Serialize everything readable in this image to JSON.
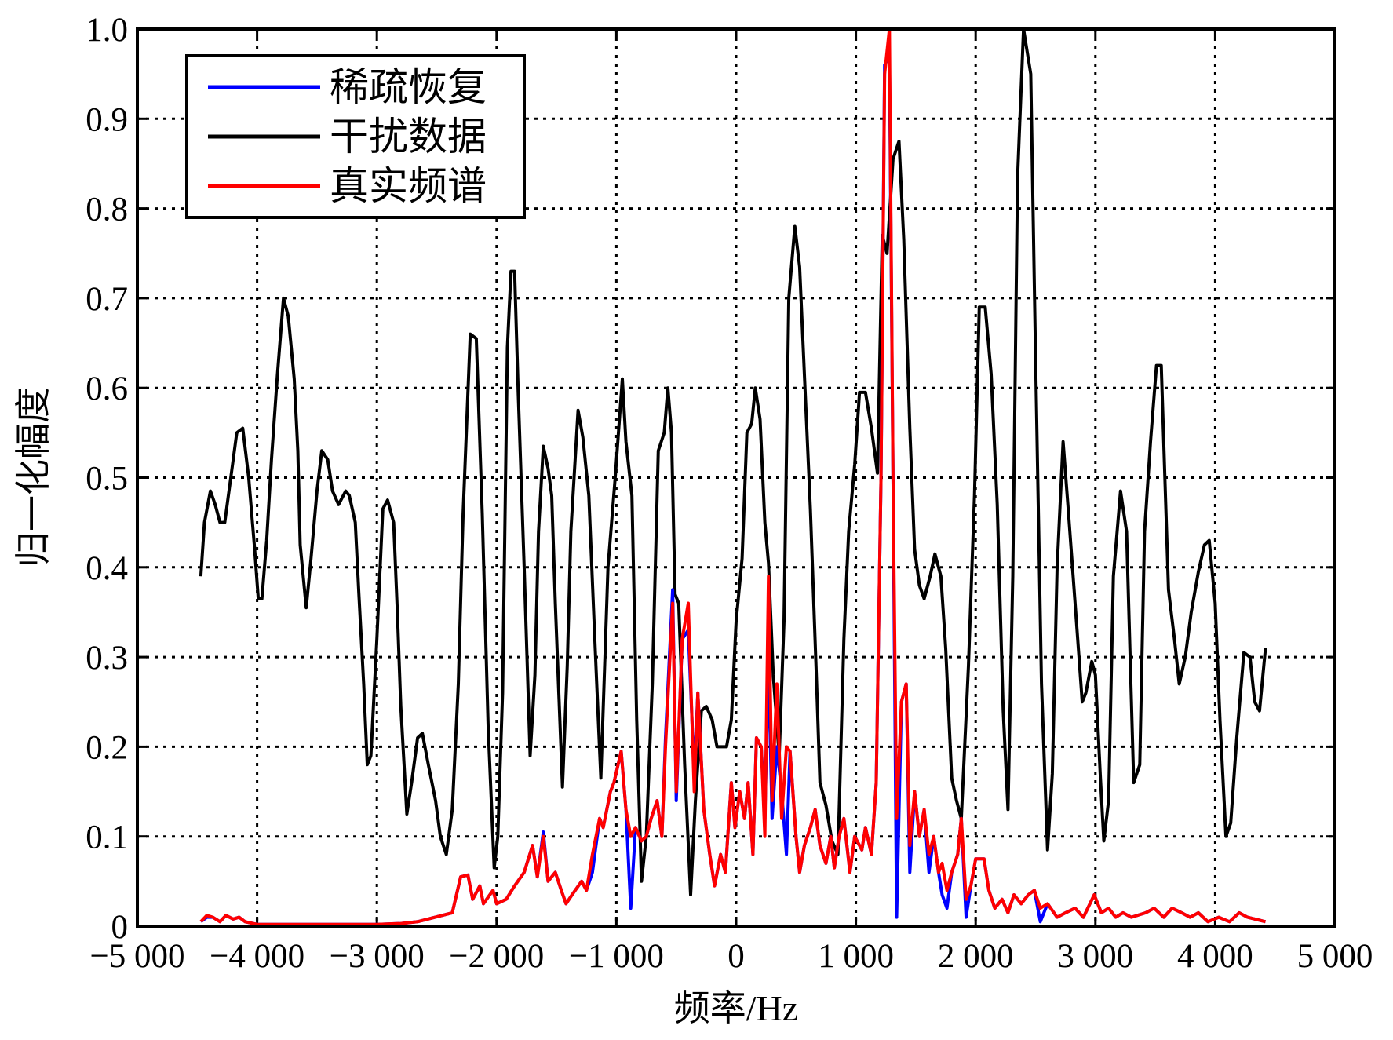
{
  "chart_data": {
    "type": "line",
    "xlabel": "频率/Hz",
    "ylabel": "归一化幅度",
    "xlim": [
      -5000,
      5000
    ],
    "xticks": [
      {
        "value": -5000,
        "label": "−5 000"
      },
      {
        "value": -4000,
        "label": "−4 000"
      },
      {
        "value": -3000,
        "label": "−3 000"
      },
      {
        "value": -2000,
        "label": "−2 000"
      },
      {
        "value": -1000,
        "label": "−1 000"
      },
      0,
      {
        "value": 1000,
        "label": "1 000"
      },
      {
        "value": 2000,
        "label": "2 000"
      },
      {
        "value": 3000,
        "label": "3 000"
      },
      {
        "value": 4000,
        "label": "4 000"
      },
      {
        "value": 5000,
        "label": "5 000"
      }
    ],
    "ylim": [
      0,
      1
    ],
    "yticks": [
      0,
      0.1,
      0.2,
      0.3,
      0.4,
      0.5,
      0.6,
      0.7,
      0.8,
      0.9,
      {
        "value": 1,
        "label": "1.0"
      }
    ],
    "grid": true,
    "legend": "upper left",
    "series": [
      {
        "name": "稀疏恢复",
        "color": "#0000ff",
        "x": [
          -4470,
          -4420,
          -4370,
          -4310,
          -4260,
          -4200,
          -4150,
          -4100,
          -4000,
          -3000,
          -2800,
          -2660,
          -2370,
          -2300,
          -2240,
          -2200,
          -2140,
          -2110,
          -2030,
          -2000,
          -1920,
          -1850,
          -1770,
          -1700,
          -1660,
          -1610,
          -1570,
          -1510,
          -1460,
          -1420,
          -1370,
          -1290,
          -1250,
          -1200,
          -1140,
          -1110,
          -1050,
          -1020,
          -960,
          -920,
          -880,
          -840,
          -790,
          -750,
          -710,
          -660,
          -620,
          -590,
          -530,
          -500,
          -450,
          -400,
          -350,
          -320,
          -270,
          -220,
          -180,
          -130,
          -90,
          -40,
          -10,
          30,
          70,
          100,
          140,
          170,
          210,
          240,
          270,
          300,
          340,
          380,
          420,
          450,
          500,
          530,
          570,
          620,
          660,
          700,
          750,
          790,
          820,
          860,
          900,
          950,
          990,
          1050,
          1080,
          1130,
          1170,
          1210,
          1240,
          1280,
          1310,
          1340,
          1380,
          1420,
          1450,
          1490,
          1530,
          1570,
          1610,
          1650,
          1690,
          1720,
          1760,
          1800,
          1850,
          1880,
          1920,
          1960,
          2000,
          2070,
          2110,
          2160,
          2220,
          2270,
          2320,
          2380,
          2440,
          2490,
          2540,
          2600,
          2680,
          2750,
          2830,
          2900,
          2990,
          3050,
          3110,
          3170,
          3230,
          3300,
          3420,
          3490,
          3570,
          3640,
          3720,
          3790,
          3860,
          3940,
          4030,
          4120,
          4200,
          4270,
          4420
        ],
        "values": [
          0.005,
          0.01,
          0.01,
          0.005,
          0.012,
          0.008,
          0.01,
          0.005,
          0.002,
          0.002,
          0.003,
          0.005,
          0.015,
          0.055,
          0.057,
          0.03,
          0.045,
          0.025,
          0.04,
          0.025,
          0.03,
          0.045,
          0.06,
          0.09,
          0.055,
          0.105,
          0.05,
          0.06,
          0.04,
          0.025,
          0.035,
          0.05,
          0.04,
          0.06,
          0.12,
          0.11,
          0.15,
          0.16,
          0.195,
          0.13,
          0.02,
          0.11,
          0.095,
          0.1,
          0.12,
          0.14,
          0.1,
          0.21,
          0.375,
          0.14,
          0.32,
          0.33,
          0.17,
          0.26,
          0.13,
          0.08,
          0.045,
          0.08,
          0.06,
          0.16,
          0.11,
          0.15,
          0.12,
          0.16,
          0.08,
          0.21,
          0.2,
          0.12,
          0.3,
          0.12,
          0.2,
          0.15,
          0.08,
          0.195,
          0.1,
          0.06,
          0.09,
          0.11,
          0.13,
          0.09,
          0.07,
          0.1,
          0.065,
          0.1,
          0.12,
          0.06,
          0.1,
          0.085,
          0.11,
          0.08,
          0.16,
          0.5,
          0.96,
          0.97,
          0.5,
          0.01,
          0.25,
          0.27,
          0.06,
          0.15,
          0.1,
          0.13,
          0.06,
          0.1,
          0.06,
          0.035,
          0.02,
          0.06,
          0.08,
          0.12,
          0.01,
          0.045,
          0.075,
          0.075,
          0.04,
          0.02,
          0.03,
          0.015,
          0.035,
          0.025,
          0.035,
          0.04,
          0.005,
          0.025,
          0.01,
          0.015,
          0.02,
          0.01,
          0.035,
          0.015,
          0.02,
          0.01,
          0.015,
          0.01,
          0.015,
          0.02,
          0.01,
          0.02,
          0.015,
          0.01,
          0.015,
          0.005,
          0.01,
          0.005,
          0.015,
          0.01,
          0.005
        ]
      },
      {
        "name": "干扰数据",
        "color": "#000000",
        "x": [
          -4470,
          -4440,
          -4390,
          -4350,
          -4310,
          -4270,
          -4210,
          -4170,
          -4120,
          -4070,
          -4020,
          -3990,
          -3960,
          -3920,
          -3880,
          -3830,
          -3780,
          -3740,
          -3690,
          -3660,
          -3640,
          -3590,
          -3550,
          -3500,
          -3460,
          -3410,
          -3370,
          -3320,
          -3260,
          -3230,
          -3180,
          -3150,
          -3110,
          -3080,
          -3050,
          -3000,
          -2950,
          -2910,
          -2860,
          -2830,
          -2800,
          -2750,
          -2710,
          -2660,
          -2620,
          -2570,
          -2510,
          -2470,
          -2420,
          -2370,
          -2320,
          -2280,
          -2220,
          -2170,
          -2120,
          -2070,
          -2020,
          -1990,
          -1950,
          -1910,
          -1880,
          -1850,
          -1820,
          -1770,
          -1720,
          -1680,
          -1650,
          -1610,
          -1570,
          -1540,
          -1510,
          -1450,
          -1410,
          -1380,
          -1320,
          -1280,
          -1230,
          -1180,
          -1130,
          -1070,
          -1010,
          -950,
          -920,
          -870,
          -830,
          -790,
          -750,
          -700,
          -650,
          -600,
          -570,
          -540,
          -510,
          -480,
          -430,
          -380,
          -340,
          -290,
          -250,
          -200,
          -160,
          -120,
          -80,
          -40,
          0,
          50,
          90,
          130,
          160,
          200,
          240,
          270,
          310,
          360,
          400,
          440,
          490,
          530,
          580,
          620,
          670,
          700,
          750,
          800,
          850,
          900,
          940,
          990,
          1030,
          1080,
          1130,
          1180,
          1220,
          1260,
          1310,
          1360,
          1400,
          1450,
          1490,
          1530,
          1570,
          1620,
          1660,
          1710,
          1750,
          1800,
          1840,
          1880,
          1940,
          1990,
          2030,
          2080,
          2130,
          2180,
          2230,
          2270,
          2310,
          2350,
          2400,
          2460,
          2500,
          2550,
          2600,
          2640,
          2680,
          2730,
          2770,
          2830,
          2890,
          2920,
          2970,
          3000,
          3040,
          3070,
          3110,
          3150,
          3210,
          3260,
          3320,
          3370,
          3410,
          3460,
          3510,
          3550,
          3610,
          3660,
          3700,
          3750,
          3800,
          3860,
          3910,
          3950,
          4000,
          4040,
          4090,
          4130,
          4180,
          4240,
          4290,
          4330,
          4370,
          4420
        ],
        "values": [
          0.39,
          0.45,
          0.485,
          0.47,
          0.45,
          0.45,
          0.51,
          0.55,
          0.555,
          0.5,
          0.42,
          0.365,
          0.365,
          0.43,
          0.52,
          0.615,
          0.7,
          0.68,
          0.61,
          0.53,
          0.425,
          0.355,
          0.41,
          0.485,
          0.53,
          0.52,
          0.485,
          0.47,
          0.485,
          0.48,
          0.45,
          0.37,
          0.27,
          0.18,
          0.19,
          0.32,
          0.465,
          0.475,
          0.45,
          0.355,
          0.245,
          0.125,
          0.16,
          0.21,
          0.215,
          0.18,
          0.14,
          0.1,
          0.08,
          0.13,
          0.27,
          0.46,
          0.66,
          0.655,
          0.46,
          0.22,
          0.065,
          0.1,
          0.26,
          0.645,
          0.73,
          0.73,
          0.595,
          0.4,
          0.19,
          0.28,
          0.44,
          0.535,
          0.51,
          0.48,
          0.36,
          0.155,
          0.29,
          0.44,
          0.575,
          0.545,
          0.48,
          0.32,
          0.165,
          0.4,
          0.5,
          0.61,
          0.54,
          0.48,
          0.23,
          0.05,
          0.1,
          0.27,
          0.53,
          0.55,
          0.6,
          0.55,
          0.37,
          0.36,
          0.18,
          0.035,
          0.14,
          0.24,
          0.245,
          0.23,
          0.2,
          0.2,
          0.2,
          0.23,
          0.34,
          0.41,
          0.55,
          0.56,
          0.6,
          0.565,
          0.45,
          0.405,
          0.28,
          0.19,
          0.34,
          0.7,
          0.78,
          0.735,
          0.585,
          0.465,
          0.28,
          0.16,
          0.135,
          0.095,
          0.08,
          0.32,
          0.44,
          0.515,
          0.595,
          0.595,
          0.555,
          0.505,
          0.77,
          0.75,
          0.855,
          0.875,
          0.765,
          0.555,
          0.42,
          0.38,
          0.365,
          0.39,
          0.415,
          0.39,
          0.31,
          0.165,
          0.14,
          0.12,
          0.29,
          0.48,
          0.69,
          0.69,
          0.615,
          0.47,
          0.24,
          0.13,
          0.39,
          0.835,
          1.0,
          0.95,
          0.635,
          0.27,
          0.085,
          0.17,
          0.4,
          0.54,
          0.47,
          0.36,
          0.25,
          0.26,
          0.295,
          0.28,
          0.17,
          0.095,
          0.14,
          0.39,
          0.485,
          0.44,
          0.16,
          0.18,
          0.44,
          0.54,
          0.625,
          0.625,
          0.375,
          0.32,
          0.27,
          0.3,
          0.35,
          0.395,
          0.425,
          0.43,
          0.36,
          0.23,
          0.1,
          0.115,
          0.21,
          0.305,
          0.3,
          0.25,
          0.24,
          0.31
        ]
      },
      {
        "name": "真实频谱",
        "color": "#ff0000",
        "x": [
          -4470,
          -4420,
          -4370,
          -4310,
          -4260,
          -4200,
          -4150,
          -4100,
          -4000,
          -3000,
          -2800,
          -2660,
          -2370,
          -2300,
          -2240,
          -2200,
          -2140,
          -2110,
          -2030,
          -2000,
          -1920,
          -1850,
          -1770,
          -1700,
          -1660,
          -1610,
          -1570,
          -1510,
          -1460,
          -1420,
          -1370,
          -1290,
          -1250,
          -1200,
          -1140,
          -1110,
          -1050,
          -1020,
          -960,
          -920,
          -880,
          -840,
          -790,
          -750,
          -710,
          -660,
          -620,
          -590,
          -530,
          -500,
          -450,
          -400,
          -350,
          -320,
          -270,
          -220,
          -180,
          -130,
          -90,
          -40,
          -10,
          30,
          70,
          100,
          140,
          170,
          210,
          240,
          270,
          300,
          340,
          380,
          420,
          450,
          500,
          530,
          570,
          620,
          660,
          700,
          750,
          790,
          820,
          860,
          900,
          950,
          990,
          1050,
          1080,
          1130,
          1170,
          1210,
          1240,
          1280,
          1310,
          1340,
          1380,
          1420,
          1450,
          1490,
          1530,
          1570,
          1610,
          1650,
          1690,
          1720,
          1760,
          1800,
          1850,
          1880,
          1920,
          1960,
          2000,
          2070,
          2110,
          2160,
          2220,
          2270,
          2320,
          2380,
          2440,
          2490,
          2540,
          2600,
          2680,
          2750,
          2830,
          2900,
          2990,
          3050,
          3110,
          3170,
          3230,
          3300,
          3420,
          3490,
          3570,
          3640,
          3720,
          3790,
          3860,
          3940,
          4030,
          4120,
          4200,
          4270,
          4420
        ],
        "values": [
          0.005,
          0.012,
          0.01,
          0.005,
          0.012,
          0.008,
          0.01,
          0.005,
          0.002,
          0.002,
          0.003,
          0.005,
          0.015,
          0.055,
          0.057,
          0.03,
          0.045,
          0.025,
          0.04,
          0.025,
          0.03,
          0.045,
          0.06,
          0.09,
          0.055,
          0.1,
          0.05,
          0.06,
          0.04,
          0.025,
          0.035,
          0.05,
          0.04,
          0.08,
          0.12,
          0.11,
          0.15,
          0.16,
          0.195,
          0.13,
          0.1,
          0.11,
          0.095,
          0.1,
          0.12,
          0.14,
          0.1,
          0.2,
          0.36,
          0.15,
          0.32,
          0.36,
          0.15,
          0.26,
          0.13,
          0.08,
          0.045,
          0.08,
          0.06,
          0.16,
          0.11,
          0.15,
          0.12,
          0.16,
          0.08,
          0.21,
          0.2,
          0.1,
          0.39,
          0.14,
          0.27,
          0.12,
          0.2,
          0.195,
          0.1,
          0.06,
          0.09,
          0.11,
          0.13,
          0.09,
          0.07,
          0.1,
          0.065,
          0.1,
          0.12,
          0.06,
          0.1,
          0.085,
          0.11,
          0.08,
          0.16,
          0.5,
          0.95,
          1.0,
          0.5,
          0.12,
          0.25,
          0.27,
          0.09,
          0.15,
          0.1,
          0.13,
          0.08,
          0.1,
          0.06,
          0.07,
          0.04,
          0.06,
          0.08,
          0.12,
          0.03,
          0.045,
          0.075,
          0.075,
          0.04,
          0.02,
          0.03,
          0.015,
          0.035,
          0.025,
          0.035,
          0.04,
          0.02,
          0.025,
          0.01,
          0.015,
          0.02,
          0.01,
          0.035,
          0.015,
          0.02,
          0.01,
          0.015,
          0.01,
          0.015,
          0.02,
          0.01,
          0.02,
          0.015,
          0.01,
          0.015,
          0.005,
          0.01,
          0.005,
          0.015,
          0.01,
          0.005
        ]
      }
    ]
  }
}
